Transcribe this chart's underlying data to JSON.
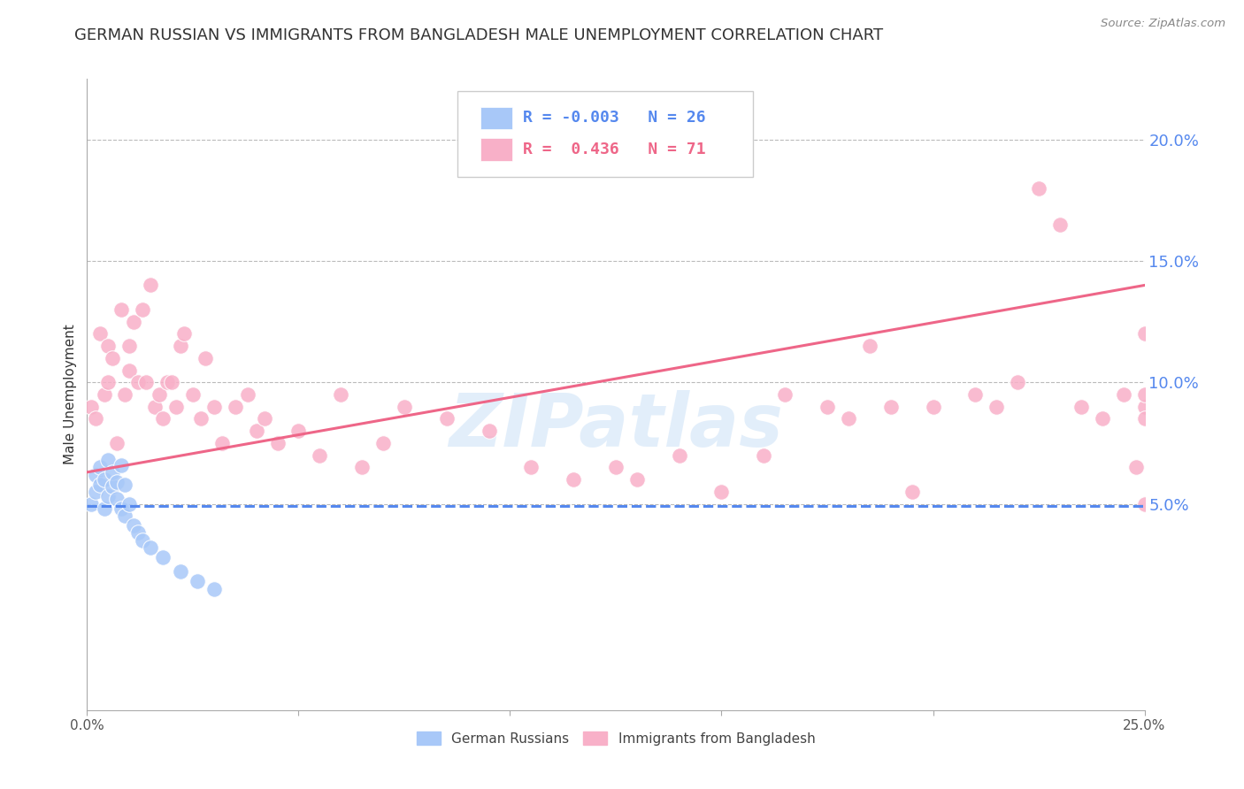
{
  "title": "GERMAN RUSSIAN VS IMMIGRANTS FROM BANGLADESH MALE UNEMPLOYMENT CORRELATION CHART",
  "source": "Source: ZipAtlas.com",
  "ylabel": "Male Unemployment",
  "xlim": [
    0.0,
    0.25
  ],
  "ylim": [
    -0.035,
    0.225
  ],
  "x_ticks": [
    0.0,
    0.05,
    0.1,
    0.15,
    0.2,
    0.25
  ],
  "x_tick_labels": [
    "0.0%",
    "",
    "",
    "",
    "",
    "25.0%"
  ],
  "y_ticks_right": [
    0.05,
    0.1,
    0.15,
    0.2
  ],
  "y_tick_labels_right": [
    "5.0%",
    "10.0%",
    "15.0%",
    "20.0%"
  ],
  "legend_box_label1": "German Russians",
  "legend_box_label2": "Immigrants from Bangladesh",
  "watermark": "ZIPatlas",
  "blue_scatter_x": [
    0.001,
    0.002,
    0.002,
    0.003,
    0.003,
    0.004,
    0.004,
    0.005,
    0.005,
    0.006,
    0.006,
    0.007,
    0.007,
    0.008,
    0.008,
    0.009,
    0.009,
    0.01,
    0.011,
    0.012,
    0.013,
    0.015,
    0.018,
    0.022,
    0.026,
    0.03
  ],
  "blue_scatter_y": [
    0.05,
    0.055,
    0.062,
    0.058,
    0.065,
    0.048,
    0.06,
    0.068,
    0.053,
    0.057,
    0.063,
    0.052,
    0.059,
    0.048,
    0.066,
    0.045,
    0.058,
    0.05,
    0.041,
    0.038,
    0.035,
    0.032,
    0.028,
    0.022,
    0.018,
    0.015
  ],
  "pink_scatter_x": [
    0.001,
    0.002,
    0.003,
    0.004,
    0.005,
    0.005,
    0.006,
    0.007,
    0.008,
    0.009,
    0.01,
    0.01,
    0.011,
    0.012,
    0.013,
    0.014,
    0.015,
    0.016,
    0.017,
    0.018,
    0.019,
    0.02,
    0.021,
    0.022,
    0.023,
    0.025,
    0.027,
    0.028,
    0.03,
    0.032,
    0.035,
    0.038,
    0.04,
    0.042,
    0.045,
    0.05,
    0.055,
    0.06,
    0.065,
    0.07,
    0.075,
    0.085,
    0.095,
    0.105,
    0.115,
    0.125,
    0.13,
    0.14,
    0.15,
    0.16,
    0.165,
    0.175,
    0.18,
    0.185,
    0.19,
    0.195,
    0.2,
    0.21,
    0.215,
    0.22,
    0.225,
    0.23,
    0.235,
    0.24,
    0.245,
    0.248,
    0.25,
    0.25,
    0.25,
    0.25,
    0.25
  ],
  "pink_scatter_y": [
    0.09,
    0.085,
    0.12,
    0.095,
    0.115,
    0.1,
    0.11,
    0.075,
    0.13,
    0.095,
    0.115,
    0.105,
    0.125,
    0.1,
    0.13,
    0.1,
    0.14,
    0.09,
    0.095,
    0.085,
    0.1,
    0.1,
    0.09,
    0.115,
    0.12,
    0.095,
    0.085,
    0.11,
    0.09,
    0.075,
    0.09,
    0.095,
    0.08,
    0.085,
    0.075,
    0.08,
    0.07,
    0.095,
    0.065,
    0.075,
    0.09,
    0.085,
    0.08,
    0.065,
    0.06,
    0.065,
    0.06,
    0.07,
    0.055,
    0.07,
    0.095,
    0.09,
    0.085,
    0.115,
    0.09,
    0.055,
    0.09,
    0.095,
    0.09,
    0.1,
    0.18,
    0.165,
    0.09,
    0.085,
    0.095,
    0.065,
    0.05,
    0.09,
    0.12,
    0.085,
    0.095
  ],
  "blue_line_x": [
    0.0,
    0.25
  ],
  "blue_line_y": [
    0.049,
    0.049
  ],
  "pink_line_x": [
    0.0,
    0.25
  ],
  "pink_line_y": [
    0.063,
    0.14
  ],
  "blue_scatter_color": "#a8c8f8",
  "pink_scatter_color": "#f8b0c8",
  "blue_line_color": "#5588ee",
  "pink_line_color": "#ee6688",
  "grid_color": "#bbbbbb",
  "background_color": "#ffffff",
  "title_fontsize": 13,
  "axis_label_fontsize": 11,
  "tick_fontsize": 11,
  "right_tick_color": "#5588ee"
}
